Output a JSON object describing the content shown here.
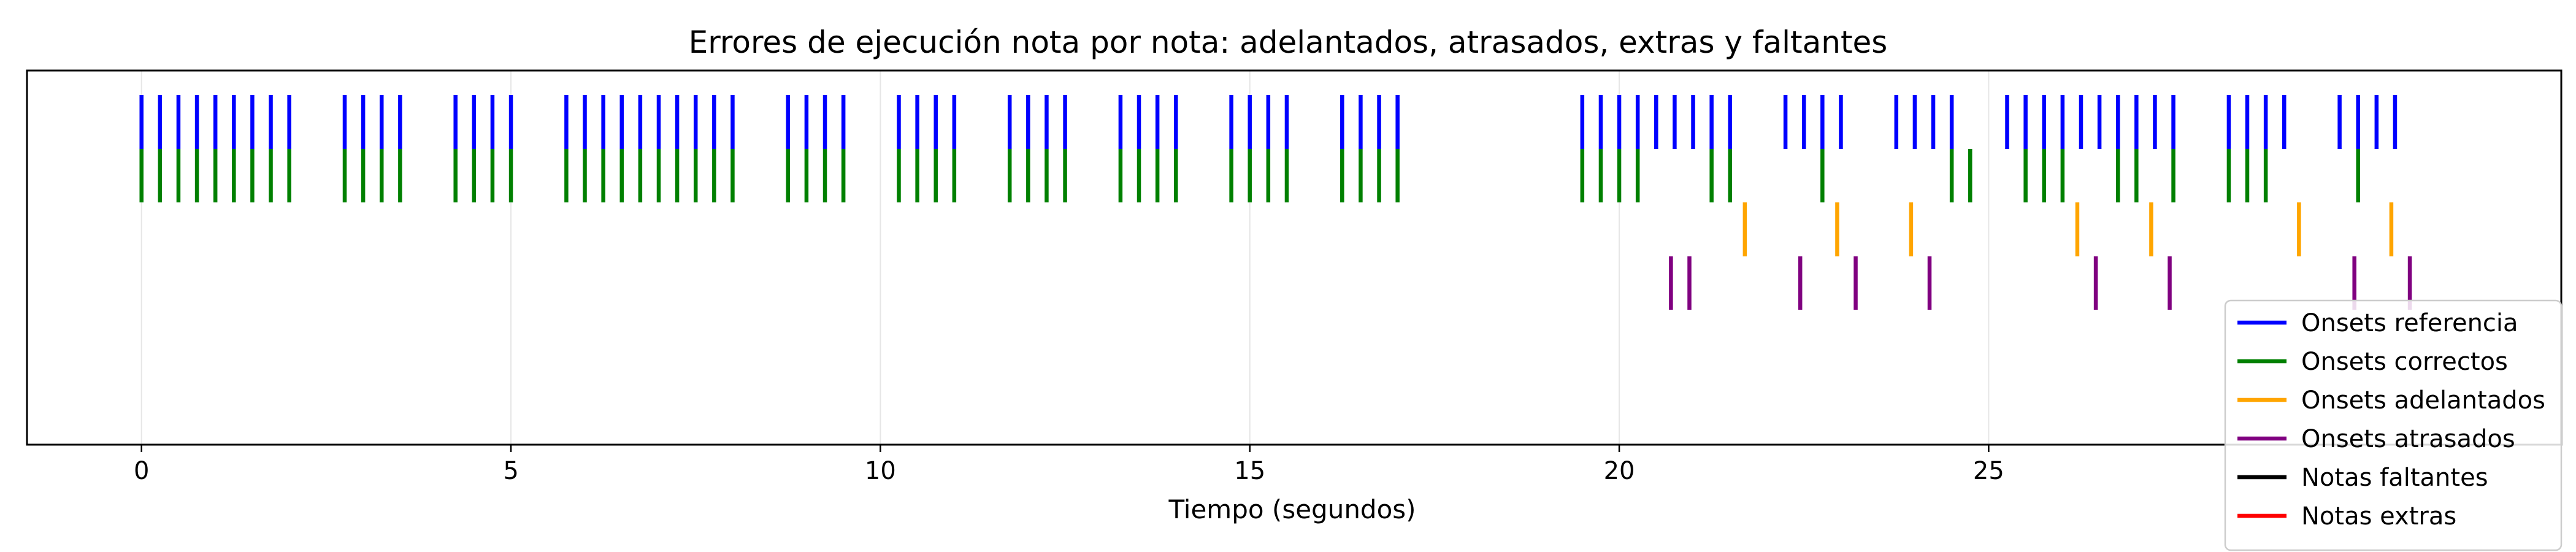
{
  "chart_data": {
    "type": "event",
    "title": "Errores de ejecución nota por nota: adelantados, atrasados, extras y faltantes",
    "xlabel": "Tiempo (segundos)",
    "ylabel": "",
    "xlim": [
      -1.55,
      32.75
    ],
    "xticks": [
      0,
      5,
      10,
      15,
      20,
      25
    ],
    "grid": "vertical",
    "legend_position": "bottom-right",
    "series": [
      {
        "name": "Onsets referencia",
        "color": "#0000ff",
        "x": [
          0.0,
          0.25,
          0.5,
          0.75,
          1.0,
          1.25,
          1.5,
          1.75,
          2.0,
          2.75,
          3.0,
          3.25,
          3.5,
          4.25,
          4.5,
          4.75,
          5.0,
          5.75,
          6.0,
          6.25,
          6.5,
          6.75,
          7.0,
          7.25,
          7.5,
          7.75,
          8.0,
          8.75,
          9.0,
          9.25,
          9.5,
          10.25,
          10.5,
          10.75,
          11.0,
          11.75,
          12.0,
          12.25,
          12.5,
          13.25,
          13.5,
          13.75,
          14.0,
          14.75,
          15.0,
          15.25,
          15.5,
          16.25,
          16.5,
          16.75,
          17.0,
          19.5,
          19.75,
          20.0,
          20.25,
          20.5,
          20.75,
          21.0,
          21.25,
          21.5,
          22.25,
          22.5,
          22.75,
          23.0,
          23.75,
          24.0,
          24.25,
          24.5,
          25.25,
          25.5,
          25.75,
          26.0,
          26.25,
          26.5,
          26.75,
          27.0,
          27.25,
          27.5,
          28.25,
          28.5,
          28.75,
          29.0,
          29.75,
          30.0,
          30.25,
          30.5
        ]
      },
      {
        "name": "Onsets correctos",
        "color": "#008000",
        "x": [
          0.0,
          0.25,
          0.5,
          0.75,
          1.0,
          1.25,
          1.5,
          1.75,
          2.0,
          2.75,
          3.0,
          3.25,
          3.5,
          4.25,
          4.5,
          4.75,
          5.0,
          5.75,
          6.0,
          6.25,
          6.5,
          6.75,
          7.0,
          7.25,
          7.5,
          7.75,
          8.0,
          8.75,
          9.0,
          9.25,
          9.5,
          10.25,
          10.5,
          10.75,
          11.0,
          11.75,
          12.0,
          12.25,
          12.5,
          13.25,
          13.5,
          13.75,
          14.0,
          14.75,
          15.0,
          15.25,
          15.5,
          16.25,
          16.5,
          16.75,
          17.0,
          19.5,
          19.75,
          20.0,
          20.25,
          21.25,
          21.5,
          22.75,
          24.5,
          24.75,
          25.5,
          25.75,
          26.0,
          26.75,
          27.0,
          27.5,
          28.25,
          28.5,
          28.75,
          30.0
        ]
      },
      {
        "name": "Onsets adelantados",
        "color": "#ffa500",
        "x": [
          21.7,
          22.95,
          23.95,
          26.2,
          27.2,
          29.2,
          30.45
        ]
      },
      {
        "name": "Onsets atrasados",
        "color": "#800080",
        "x": [
          20.7,
          20.95,
          22.45,
          23.2,
          24.2,
          26.45,
          27.45,
          29.95,
          30.7
        ]
      },
      {
        "name": "Notas faltantes",
        "color": "#000000",
        "x": []
      },
      {
        "name": "Notas extras",
        "color": "#ff0000",
        "x": []
      }
    ]
  }
}
